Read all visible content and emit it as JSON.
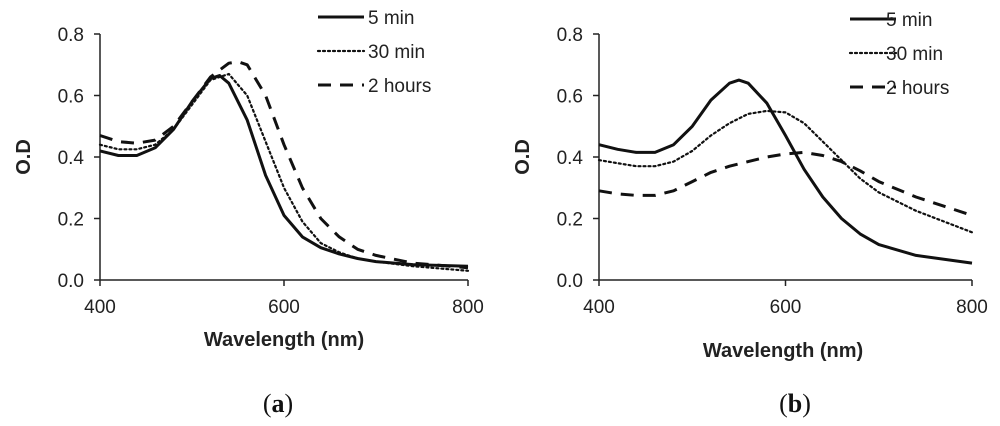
{
  "chart_data": [
    {
      "type": "line",
      "panel_label": "a",
      "xlabel": "Wavelength (nm)",
      "ylabel": "O.D",
      "xlim": [
        400,
        800
      ],
      "ylim": [
        0.0,
        0.8
      ],
      "xticks": [
        "400",
        "600",
        "800"
      ],
      "yticks": [
        "0.0",
        "0.2",
        "0.4",
        "0.6",
        "0.8"
      ],
      "legend_position": "top-right",
      "series": [
        {
          "name": "5 min",
          "style": "solid",
          "x": [
            400,
            420,
            440,
            460,
            480,
            500,
            520,
            530,
            540,
            560,
            580,
            600,
            620,
            640,
            660,
            680,
            700,
            740,
            800
          ],
          "y": [
            0.42,
            0.405,
            0.405,
            0.43,
            0.49,
            0.58,
            0.655,
            0.665,
            0.64,
            0.52,
            0.34,
            0.21,
            0.14,
            0.105,
            0.085,
            0.07,
            0.06,
            0.05,
            0.045
          ]
        },
        {
          "name": "30 min",
          "style": "dotted",
          "x": [
            400,
            420,
            440,
            460,
            480,
            500,
            520,
            540,
            560,
            580,
            600,
            620,
            640,
            660,
            680,
            700,
            740,
            800
          ],
          "y": [
            0.44,
            0.425,
            0.425,
            0.44,
            0.49,
            0.57,
            0.65,
            0.67,
            0.6,
            0.45,
            0.3,
            0.19,
            0.12,
            0.09,
            0.07,
            0.06,
            0.045,
            0.03
          ]
        },
        {
          "name": "2 hours",
          "style": "dashed",
          "x": [
            400,
            420,
            440,
            460,
            480,
            500,
            520,
            540,
            550,
            560,
            580,
            600,
            620,
            640,
            660,
            680,
            700,
            740,
            800
          ],
          "y": [
            0.47,
            0.45,
            0.445,
            0.455,
            0.5,
            0.58,
            0.66,
            0.705,
            0.71,
            0.7,
            0.6,
            0.44,
            0.3,
            0.2,
            0.14,
            0.1,
            0.08,
            0.055,
            0.04
          ]
        }
      ]
    },
    {
      "type": "line",
      "panel_label": "b",
      "xlabel": "Wavelength (nm)",
      "ylabel": "O.D",
      "xlim": [
        400,
        800
      ],
      "ylim": [
        0.0,
        0.8
      ],
      "xticks": [
        "400",
        "600",
        "800"
      ],
      "yticks": [
        "0.0",
        "0.2",
        "0.4",
        "0.6",
        "0.8"
      ],
      "legend_position": "top-right",
      "series": [
        {
          "name": "5 min",
          "style": "solid",
          "x": [
            400,
            420,
            440,
            460,
            480,
            500,
            520,
            540,
            550,
            560,
            580,
            600,
            620,
            640,
            660,
            680,
            700,
            740,
            800
          ],
          "y": [
            0.44,
            0.425,
            0.415,
            0.415,
            0.44,
            0.5,
            0.585,
            0.64,
            0.65,
            0.64,
            0.575,
            0.47,
            0.36,
            0.27,
            0.2,
            0.15,
            0.115,
            0.08,
            0.055
          ]
        },
        {
          "name": "30 min",
          "style": "dotted",
          "x": [
            400,
            420,
            440,
            460,
            480,
            500,
            520,
            540,
            560,
            580,
            600,
            620,
            640,
            660,
            680,
            700,
            740,
            800
          ],
          "y": [
            0.39,
            0.38,
            0.37,
            0.37,
            0.385,
            0.42,
            0.47,
            0.51,
            0.54,
            0.55,
            0.545,
            0.51,
            0.45,
            0.39,
            0.33,
            0.285,
            0.225,
            0.155
          ]
        },
        {
          "name": "2 hours",
          "style": "dashed",
          "x": [
            400,
            420,
            440,
            460,
            480,
            500,
            520,
            540,
            560,
            580,
            600,
            620,
            640,
            660,
            680,
            700,
            740,
            800
          ],
          "y": [
            0.29,
            0.28,
            0.275,
            0.275,
            0.29,
            0.32,
            0.35,
            0.37,
            0.385,
            0.4,
            0.41,
            0.415,
            0.405,
            0.385,
            0.355,
            0.32,
            0.27,
            0.21
          ]
        }
      ]
    }
  ]
}
